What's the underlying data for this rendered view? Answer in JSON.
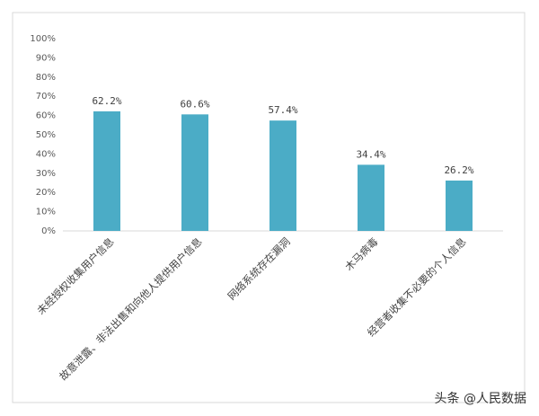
{
  "chart_data": {
    "type": "bar",
    "categories": [
      "未经授权收集用户信息",
      "故意泄露、非法出售和向他人提供用户信息",
      "网络系统存在漏洞",
      "木马病毒",
      "经营者收集不必要的个人信息"
    ],
    "values": [
      62.2,
      60.6,
      57.4,
      34.4,
      26.2
    ],
    "value_labels": [
      "62.2%",
      "60.6%",
      "57.4%",
      "34.4%",
      "26.2%"
    ],
    "color": "#4bacc6",
    "ylim": [
      0,
      100
    ],
    "yticks": [
      {
        "value": 0,
        "label": "0%"
      },
      {
        "value": 10,
        "label": "10%"
      },
      {
        "value": 20,
        "label": "20%"
      },
      {
        "value": 30,
        "label": "30%"
      },
      {
        "value": 40,
        "label": "40%"
      },
      {
        "value": 50,
        "label": "50%"
      },
      {
        "value": 60,
        "label": "60%"
      },
      {
        "value": 70,
        "label": "70%"
      },
      {
        "value": 80,
        "label": "80%"
      },
      {
        "value": 90,
        "label": "90%"
      },
      {
        "value": 100,
        "label": "100%"
      }
    ],
    "grid": false
  },
  "watermark": "头条 @人民数据"
}
